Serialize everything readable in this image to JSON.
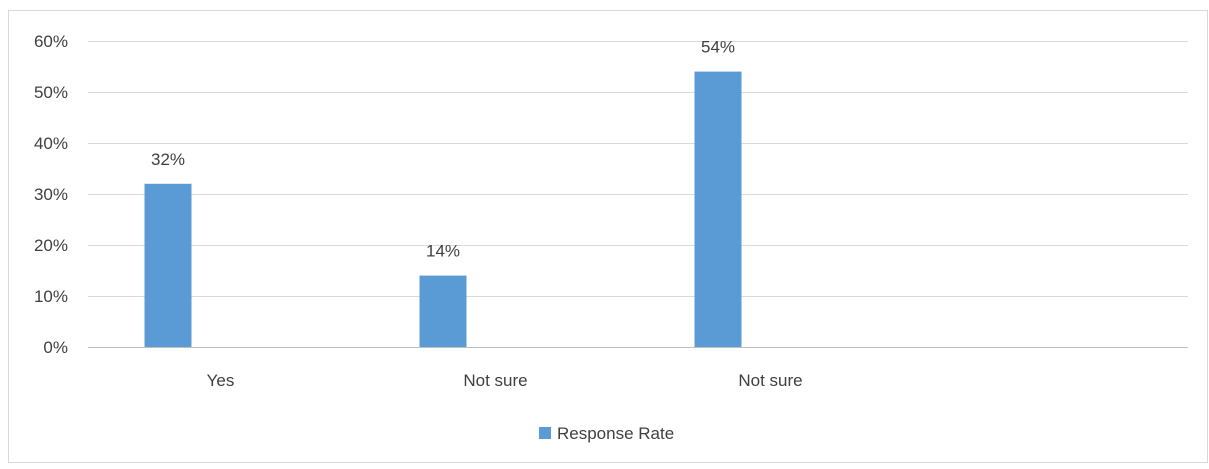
{
  "colors": {
    "bar": "#5b9bd5",
    "grid": "#d9d9d9",
    "axis": "#bfbfbf",
    "text": "#404040",
    "border": "#d9d9d9"
  },
  "chart_data": {
    "type": "bar",
    "title": "",
    "categories": [
      "Yes",
      "Not sure",
      "Not sure",
      ""
    ],
    "series": [
      {
        "name": "Response Rate",
        "values": [
          32,
          14,
          54,
          null
        ],
        "labels": [
          "32%",
          "14%",
          "54%",
          ""
        ]
      }
    ],
    "ylim": [
      0,
      60
    ],
    "yticks": [
      0,
      10,
      20,
      30,
      40,
      50,
      60
    ],
    "ytick_labels": [
      "0%",
      "10%",
      "20%",
      "30%",
      "40%",
      "50%",
      "60%"
    ],
    "grid": true,
    "legend_position": "bottom-center",
    "legend_entries": [
      "Response Rate"
    ]
  }
}
